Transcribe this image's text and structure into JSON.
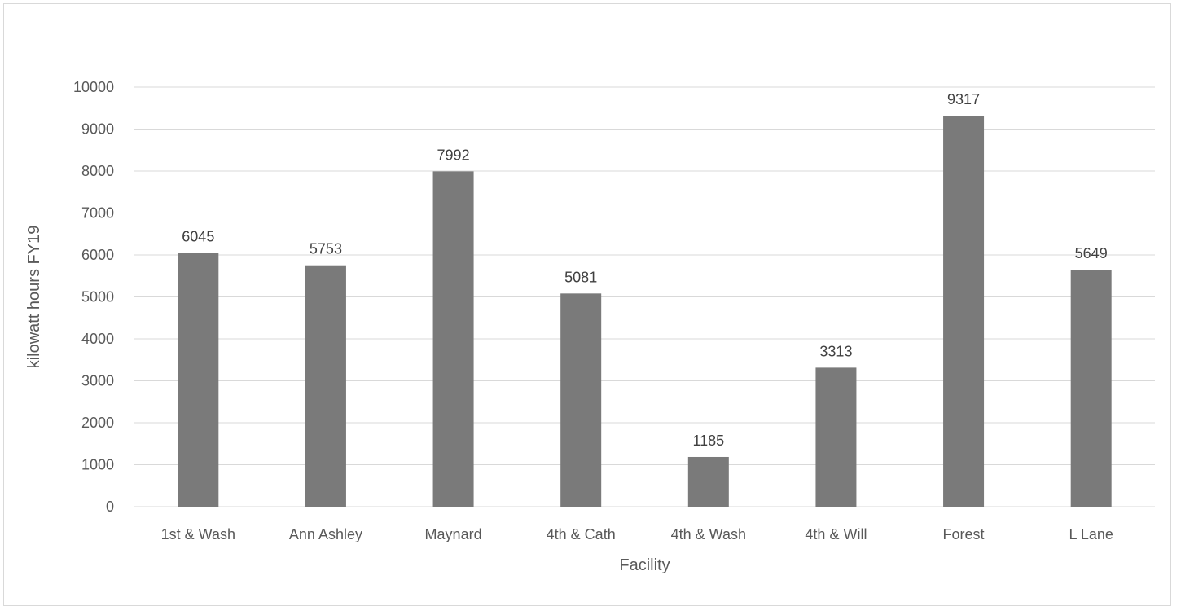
{
  "chart_data": {
    "type": "bar",
    "title": "",
    "xlabel": "Facility",
    "ylabel": "kilowatt hours FY19",
    "categories": [
      "1st & Wash",
      "Ann Ashley",
      "Maynard",
      "4th & Cath",
      "4th & Wash",
      "4th & Will",
      "Forest",
      "L Lane"
    ],
    "values": [
      6045,
      5753,
      7992,
      5081,
      1185,
      3313,
      9317,
      5649
    ],
    "ylim": [
      0,
      10000
    ],
    "yticks": [
      0,
      1000,
      2000,
      3000,
      4000,
      5000,
      6000,
      7000,
      8000,
      9000,
      10000
    ],
    "grid": true,
    "data_labels": true,
    "legend": "none",
    "colors": {
      "bar": "#7a7a7a",
      "grid": "#d9d9d9",
      "text": "#595959"
    }
  }
}
